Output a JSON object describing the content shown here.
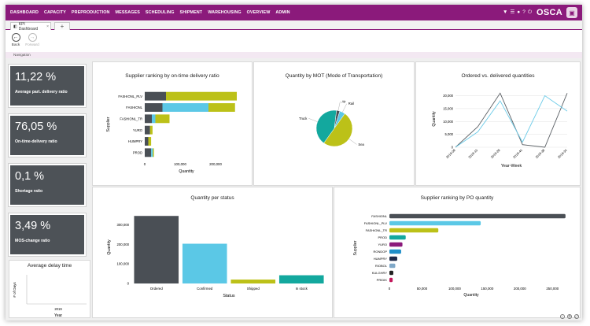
{
  "nav": {
    "items": [
      "DASHBOARD",
      "CAPACITY",
      "PREPRODUCTION",
      "MESSAGES",
      "SCHEDULING",
      "SHIPMENT",
      "WAREHOUSING",
      "OVERVIEW",
      "ADMIN"
    ],
    "logo": "OSCA",
    "icons": [
      "filter-icon",
      "list-icon",
      "user-icon",
      "help-icon",
      "power-icon"
    ]
  },
  "tabs": {
    "active": "KPI Dashboard",
    "close": "×",
    "add": "+"
  },
  "toolbar": {
    "back": "Back",
    "forward": "Forward",
    "section": "Navigation"
  },
  "kpis": [
    {
      "value": "11,22 %",
      "label": "Average part. delivery ratio"
    },
    {
      "value": "76,05 %",
      "label": "On-time-delivery ratio"
    },
    {
      "value": "0,1 %",
      "label": "Shortage ratio"
    },
    {
      "value": "3,49 %",
      "label": "MOS-change ratio"
    }
  ],
  "delay": {
    "title": "Average delay time",
    "ylabel": "# of Days",
    "xlabel": "Year",
    "tick": "2019"
  },
  "chart_data": [
    {
      "type": "bar",
      "title": "Supplier ranking by on-time delivery ratio",
      "orientation": "horizontal",
      "stacked": true,
      "categories": [
        "FASHIONL_PLV",
        "FASHIONL",
        "FASHIONL_TR",
        "YURO",
        "HUMPRY",
        "PROD"
      ],
      "series": [
        {
          "color": "#4a4f55",
          "values": [
            60000,
            50000,
            20000,
            15000,
            10000,
            18000
          ]
        },
        {
          "color": "#5bc8e6",
          "values": [
            0,
            130000,
            10000,
            0,
            0,
            5000
          ]
        },
        {
          "color": "#bcc118",
          "values": [
            200000,
            75000,
            40000,
            7000,
            8000,
            3000
          ]
        }
      ],
      "xticks": [
        "0",
        "100,000",
        "200,000"
      ],
      "xlim": [
        0,
        280000
      ],
      "xlabel": "Quantity",
      "ylabel": "Supplier"
    },
    {
      "type": "pie",
      "title": "Quantity by MOT (Mode of Transportation)",
      "labels": [
        "Air",
        "Rail",
        "Sea",
        "Truck"
      ],
      "values": [
        3,
        5,
        50,
        42
      ],
      "colors": [
        "#4a4f55",
        "#5bc8e6",
        "#bcc118",
        "#13a89e"
      ]
    },
    {
      "type": "line",
      "title": "Ordered vs. delivered quantities",
      "x": [
        "2019-08",
        "2019-15",
        "2019-28",
        "2019-40",
        "2019-38",
        "2019-34"
      ],
      "series": [
        {
          "color": "#5a5f64",
          "values": [
            0,
            8000,
            21000,
            1000,
            0,
            21000
          ]
        },
        {
          "color": "#6ccbe8",
          "values": [
            0,
            6000,
            18000,
            2000,
            20000,
            14000
          ]
        }
      ],
      "yticks": [
        "0",
        "5,000",
        "10,000",
        "15,000",
        "20,000"
      ],
      "ylim": [
        0,
        22000
      ],
      "xlabel": "Year-Week",
      "ylabel": "Quantity"
    },
    {
      "type": "bar",
      "title": "Quantity per status",
      "categories": [
        "Ordered",
        "Confirmed",
        "Shipped",
        "In stock"
      ],
      "values": [
        345000,
        203000,
        20000,
        42000
      ],
      "colors": [
        "#4a4f55",
        "#5bc8e6",
        "#bcc118",
        "#13a89e"
      ],
      "yticks": [
        "0",
        "100,000",
        "200,000",
        "300,000"
      ],
      "ylim": [
        0,
        370000
      ],
      "xlabel": "Status",
      "ylabel": "Quantity"
    },
    {
      "type": "bar",
      "title": "Supplier ranking by PO quantity",
      "orientation": "horizontal",
      "categories": [
        "FASHIONL",
        "FASHIONL_PLV",
        "FASHIONL_TR",
        "PROD",
        "YURO",
        "RONDOP",
        "HUMPRY",
        "RIOBOL",
        "KULGHRY",
        "PRIDIK"
      ],
      "values": [
        270000,
        140000,
        75000,
        25000,
        20000,
        18000,
        12000,
        9000,
        6000,
        5000
      ],
      "colors": [
        "#4a4f55",
        "#5bc8e6",
        "#bcc118",
        "#13a89e",
        "#8b1a7b",
        "#1f8fc9",
        "#1e2a4a",
        "#7fa8c8",
        "#222222",
        "#c2185b"
      ],
      "xticks": [
        "0",
        "50,000",
        "100,000",
        "150,000",
        "200,000",
        "250,000"
      ],
      "xlim": [
        0,
        275000
      ],
      "xlabel": "Quantity",
      "ylabel": "Supplier"
    }
  ]
}
